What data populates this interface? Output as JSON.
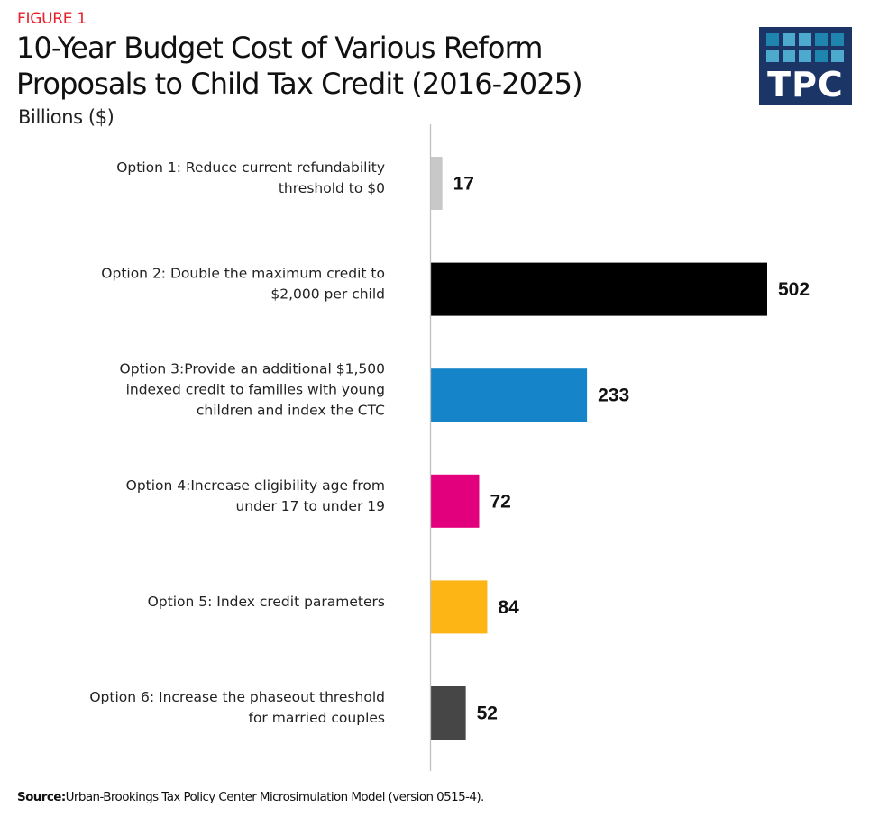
{
  "figure_label": "FIGURE 1",
  "logo": {
    "text": "TPC",
    "background": "#1a3566",
    "squares": [
      "dark",
      "light",
      "light",
      "dark",
      "dark",
      "light",
      "light",
      "light",
      "dark",
      "light"
    ],
    "square_colors": {
      "dark": "#1f84ae",
      "light": "#4daace"
    }
  },
  "source": {
    "prefix": "Source:",
    "text": "Urban-Brookings Tax Policy Center Microsimulation Model (version 0515-4)."
  },
  "chart_data": {
    "type": "bar",
    "orientation": "horizontal",
    "title": "10-Year Budget Cost of Various Reform Proposals to Child Tax Credit (2016-2025)",
    "title_lines": [
      "10-Year Budget Cost of Various Reform",
      "Proposals to Child Tax Credit (2016-2025)"
    ],
    "subtitle": "Billions ($)",
    "xlabel": "",
    "ylabel": "",
    "xlim": [
      0,
      502
    ],
    "grid": false,
    "legend": "none",
    "categories": [
      "Option 1: Reduce current refundability threshold to $0",
      "Option 2: Double the maximum credit to $2,000 per child",
      "Option 3:Provide an additional $1,500 indexed credit to families with young children and index the CTC",
      "Option 4:Increase eligibility age from under 17 to under 19",
      "Option 5: Index credit parameters",
      "Option 6: Increase the phaseout threshold for married couples"
    ],
    "category_lines": [
      [
        "Option 1: Reduce current refundability",
        "threshold to $0"
      ],
      [
        "Option 2: Double the maximum credit to",
        "$2,000 per child"
      ],
      [
        "Option 3:Provide an additional $1,500",
        "indexed credit to families with young",
        "children and index the CTC"
      ],
      [
        "Option 4:Increase eligibility age from",
        "under 17 to under 19"
      ],
      [
        "Option 5: Index credit parameters"
      ],
      [
        "Option 6: Increase the phaseout threshold",
        "for married couples"
      ]
    ],
    "values": [
      17,
      502,
      233,
      72,
      84,
      52
    ],
    "data_labels": [
      "17",
      "502",
      "233",
      "72",
      "84",
      "52"
    ],
    "colors": [
      "#c8c8c8",
      "#000000",
      "#1584c8",
      "#e3007c",
      "#fdb515",
      "#464646"
    ]
  }
}
